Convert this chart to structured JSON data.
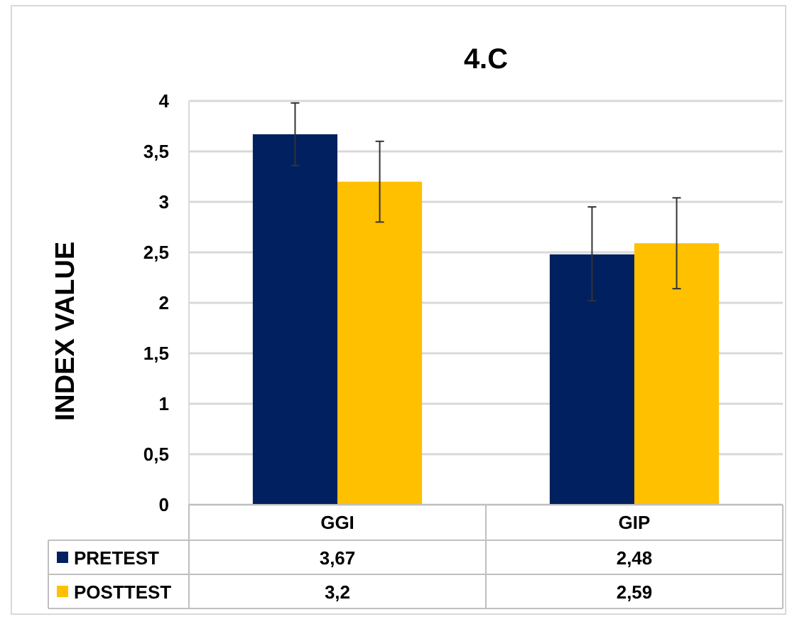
{
  "chart_data": {
    "type": "bar",
    "title": "4.C",
    "ylabel": "INDEX VALUE",
    "categories": [
      "GGI",
      "GIP"
    ],
    "series": [
      {
        "name": "PRETEST",
        "color": "#002060",
        "values": [
          3.67,
          2.48
        ],
        "value_labels": [
          "3,67",
          "2,48"
        ],
        "errors": [
          [
            3.36,
            3.98
          ],
          [
            2.02,
            2.95
          ]
        ]
      },
      {
        "name": "POSTTEST",
        "color": "#ffc000",
        "values": [
          3.2,
          2.59
        ],
        "value_labels": [
          "3,2",
          "2,59"
        ],
        "errors": [
          [
            2.8,
            3.6
          ],
          [
            2.14,
            3.04
          ]
        ]
      }
    ],
    "ylim": [
      0,
      4
    ],
    "yticks": [
      0,
      {
        "value": 0.5,
        "label": "0,5"
      },
      1,
      {
        "value": 1.5,
        "label": "1,5"
      },
      2,
      {
        "value": 2.5,
        "label": "2,5"
      },
      3,
      {
        "value": 3.5,
        "label": "3,5"
      },
      4
    ],
    "grid": "y",
    "legend": "bottom"
  }
}
